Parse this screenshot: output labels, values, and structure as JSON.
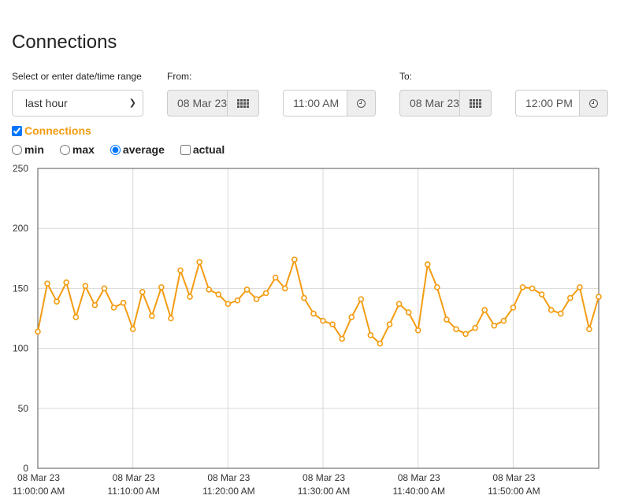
{
  "page": {
    "title": "Connections"
  },
  "range": {
    "label": "Select or enter date/time range",
    "selected": "last hour"
  },
  "from": {
    "label": "From:",
    "date": "08 Mar 23",
    "time": "11:00 AM",
    "calendar_icon": "calendar-grid-icon",
    "clock_icon": "clock-icon"
  },
  "to": {
    "label": "To:",
    "date": "08 Mar 23",
    "time": "12:00 PM",
    "calendar_icon": "calendar-grid-icon",
    "clock_icon": "clock-icon"
  },
  "series_toggle": {
    "label": "Connections",
    "checked": true,
    "color": "#f39c12"
  },
  "modes": [
    {
      "label": "min",
      "type": "radio",
      "checked": false
    },
    {
      "label": "max",
      "type": "radio",
      "checked": false
    },
    {
      "label": "average",
      "type": "radio",
      "checked": true
    },
    {
      "label": "actual",
      "type": "checkbox",
      "checked": false
    }
  ],
  "chart_data": {
    "type": "line",
    "title": "",
    "xlabel": "",
    "ylabel": "",
    "ylim": [
      0,
      250
    ],
    "yticks": [
      "0",
      "50",
      "100",
      "150",
      "200",
      "250"
    ],
    "xlim_minutes": [
      0,
      59
    ],
    "xticks": [
      {
        "minute": 0,
        "date": "08 Mar 23",
        "time": "11:00:00 AM"
      },
      {
        "minute": 10,
        "date": "08 Mar 23",
        "time": "11:10:00 AM"
      },
      {
        "minute": 20,
        "date": "08 Mar 23",
        "time": "11:20:00 AM"
      },
      {
        "minute": 30,
        "date": "08 Mar 23",
        "time": "11:30:00 AM"
      },
      {
        "minute": 40,
        "date": "08 Mar 23",
        "time": "11:40:00 AM"
      },
      {
        "minute": 50,
        "date": "08 Mar 23",
        "time": "11:50:00 AM"
      }
    ],
    "grid": true,
    "legend": "none",
    "series": [
      {
        "name": "Connections",
        "color": "#f39c12",
        "x": [
          0,
          1,
          2,
          3,
          4,
          5,
          6,
          7,
          8,
          9,
          10,
          11,
          12,
          13,
          14,
          15,
          16,
          17,
          18,
          19,
          20,
          21,
          22,
          23,
          24,
          25,
          26,
          27,
          28,
          29,
          30,
          31,
          32,
          33,
          34,
          35,
          36,
          37,
          38,
          39,
          40,
          41,
          42,
          43,
          44,
          45,
          46,
          47,
          48,
          49,
          50,
          51,
          52,
          53,
          54,
          55,
          56,
          57,
          58,
          59
        ],
        "values": [
          114,
          154,
          139,
          155,
          126,
          152,
          136,
          150,
          134,
          138,
          116,
          147,
          127,
          151,
          125,
          165,
          143,
          172,
          149,
          145,
          137,
          140,
          149,
          141,
          146,
          159,
          150,
          174,
          142,
          129,
          123,
          120,
          108,
          126,
          141,
          111,
          104,
          120,
          137,
          130,
          115,
          170,
          151,
          124,
          116,
          112,
          117,
          132,
          119,
          123,
          134,
          151,
          150,
          145,
          132,
          129,
          142,
          151,
          116,
          143
        ]
      }
    ]
  }
}
